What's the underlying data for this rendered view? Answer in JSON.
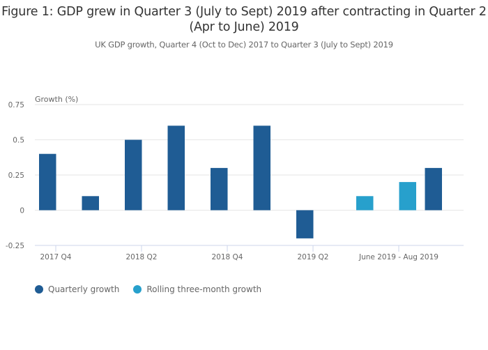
{
  "title": "Figure 1: GDP grew in Quarter 3 (July to Sept) 2019 after contracting in Quarter 2 (Apr to June) 2019",
  "subtitle": "UK GDP growth, Quarter 4 (Oct to Dec) 2017 to Quarter 3 (July to Sept) 2019",
  "legend": [
    {
      "label": "Quarterly growth",
      "color": "#1f5c94"
    },
    {
      "label": "Rolling three-month growth",
      "color": "#27a0cc"
    }
  ],
  "chart_data": {
    "type": "bar",
    "title": "Figure 1: GDP grew in Quarter 3 (July to Sept) 2019 after contracting in Quarter 2 (Apr to June) 2019",
    "subtitle": "UK GDP growth, Quarter 4 (Oct to Dec) 2017 to Quarter 3 (July to Sept) 2019",
    "xlabel": "",
    "ylabel": "Growth (%)",
    "ylim": [
      -0.25,
      0.75
    ],
    "yticks": [
      -0.25,
      0,
      0.25,
      0.5,
      0.75
    ],
    "ytick_labels": [
      "-0.25",
      "0",
      "0.25",
      "0.5",
      "0.75"
    ],
    "grid": true,
    "legend_position": "bottom-left",
    "categories": [
      "2017 Q4",
      "",
      "2018 Q2",
      "",
      "2018 Q4",
      "",
      "2019 Q2",
      "",
      "June 2019 - Aug 2019",
      ""
    ],
    "xtick_labels_shown": [
      "2017 Q4",
      "2018 Q2",
      "2018 Q4",
      "2019 Q2",
      "June 2019 - Aug 2019"
    ],
    "series": [
      {
        "name": "Quarterly growth",
        "color": "#1f5c94",
        "values": [
          0.4,
          0.1,
          0.5,
          0.6,
          0.3,
          0.6,
          -0.2,
          null,
          null,
          0.3
        ]
      },
      {
        "name": "Rolling three-month growth",
        "color": "#27a0cc",
        "values": [
          null,
          null,
          null,
          null,
          null,
          null,
          null,
          0.1,
          0.2,
          null
        ]
      }
    ]
  }
}
